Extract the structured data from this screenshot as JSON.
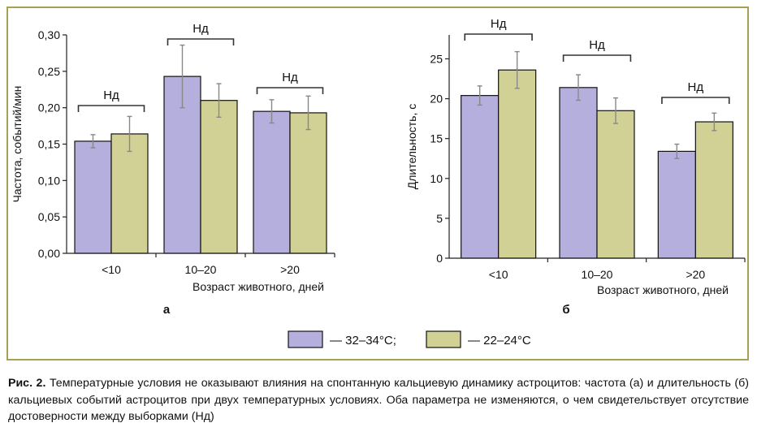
{
  "colors": {
    "warm": "#b4afdc",
    "cool": "#d2d195",
    "frame": "#a8a055",
    "axis": "#222222",
    "grid": "#555555"
  },
  "legend": {
    "items": [
      {
        "label": "— 32–34°C;",
        "color": "#b4afdc"
      },
      {
        "label": "— 22–24°C",
        "color": "#d2d195"
      }
    ]
  },
  "caption": {
    "label": "Рис. 2.",
    "text": "Температурные условия не оказывают влияния на спонтанную кальциевую динамику астроцитов: частота (а) и длительность (б) кальциевых событий астроцитов при двух температурных условиях. Оба параметра не изменяются, о чем свидетельствует отсутствие достоверности между выборками (Нд)"
  },
  "chart_data": [
    {
      "type": "bar",
      "panel_label": "а",
      "categories": [
        "<10",
        "10–20",
        ">20"
      ],
      "ylabel": "Частота, событий/мин",
      "xlabel": "Возраст животного, дней",
      "ylim": [
        0,
        0.3
      ],
      "yticks": [
        "0,00",
        "0,05",
        "0,10",
        "0,15",
        "0,20",
        "0,25",
        "0,30"
      ],
      "grid": false,
      "series": [
        {
          "name": "— 32–34°C;",
          "values": [
            0.154,
            0.243,
            0.195
          ],
          "errors": [
            0.009,
            0.043,
            0.016
          ]
        },
        {
          "name": "— 22–24°C",
          "values": [
            0.164,
            0.21,
            0.193
          ],
          "errors": [
            0.024,
            0.023,
            0.023
          ]
        }
      ],
      "annotations": [
        "Нд",
        "Нд",
        "Нд"
      ]
    },
    {
      "type": "bar",
      "panel_label": "б",
      "categories": [
        "<10",
        "10–20",
        ">20"
      ],
      "ylabel": "Длительность, с",
      "xlabel": "Возраст животного, дней",
      "ylim": [
        0,
        28
      ],
      "yticks": [
        "0",
        "5",
        "10",
        "15",
        "20",
        "25"
      ],
      "grid": false,
      "series": [
        {
          "name": "— 32–34°C;",
          "values": [
            20.4,
            21.4,
            13.4
          ],
          "errors": [
            1.2,
            1.6,
            0.9
          ]
        },
        {
          "name": "— 22–24°C",
          "values": [
            23.6,
            18.5,
            17.1
          ],
          "errors": [
            2.3,
            1.6,
            1.1
          ]
        }
      ],
      "annotations": [
        "Нд",
        "Нд",
        "Нд"
      ]
    }
  ]
}
